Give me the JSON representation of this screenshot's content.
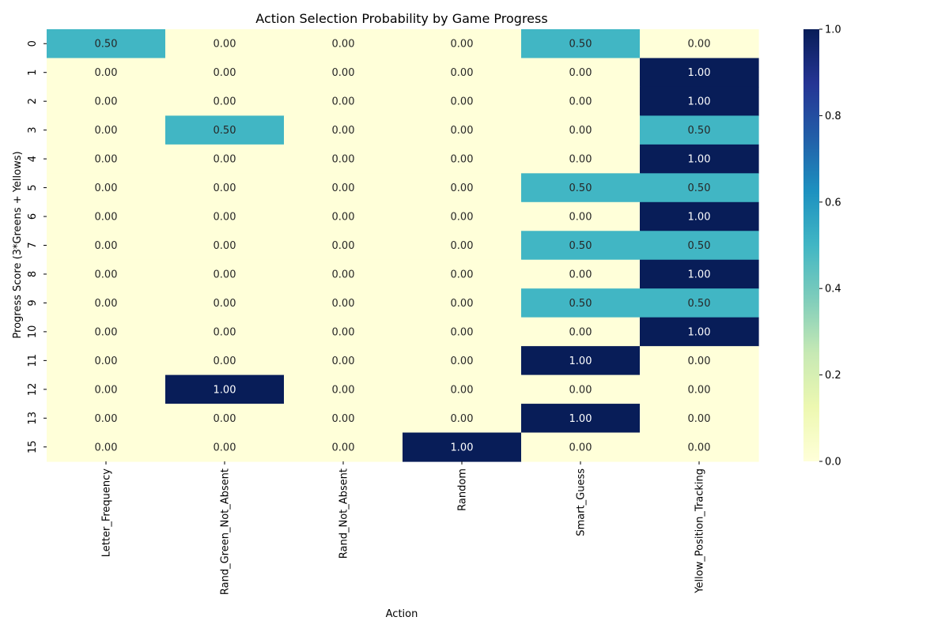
{
  "chart_data": {
    "type": "heatmap",
    "title": "Action Selection Probability by Game Progress",
    "xlabel": "Action",
    "ylabel": "Progress Score (3*Greens + Yellows)",
    "columns": [
      "Letter_Frequency",
      "Rand_Green_Not_Absent",
      "Rand_Not_Absent",
      "Random",
      "Smart_Guess",
      "Yellow_Position_Tracking"
    ],
    "rows": [
      "0",
      "1",
      "2",
      "3",
      "4",
      "5",
      "6",
      "7",
      "8",
      "9",
      "10",
      "11",
      "12",
      "13",
      "15"
    ],
    "values": [
      [
        0.5,
        0.0,
        0.0,
        0.0,
        0.5,
        0.0
      ],
      [
        0.0,
        0.0,
        0.0,
        0.0,
        0.0,
        1.0
      ],
      [
        0.0,
        0.0,
        0.0,
        0.0,
        0.0,
        1.0
      ],
      [
        0.0,
        0.5,
        0.0,
        0.0,
        0.0,
        0.5
      ],
      [
        0.0,
        0.0,
        0.0,
        0.0,
        0.0,
        1.0
      ],
      [
        0.0,
        0.0,
        0.0,
        0.0,
        0.5,
        0.5
      ],
      [
        0.0,
        0.0,
        0.0,
        0.0,
        0.0,
        1.0
      ],
      [
        0.0,
        0.0,
        0.0,
        0.0,
        0.5,
        0.5
      ],
      [
        0.0,
        0.0,
        0.0,
        0.0,
        0.0,
        1.0
      ],
      [
        0.0,
        0.0,
        0.0,
        0.0,
        0.5,
        0.5
      ],
      [
        0.0,
        0.0,
        0.0,
        0.0,
        0.0,
        1.0
      ],
      [
        0.0,
        0.0,
        0.0,
        0.0,
        1.0,
        0.0
      ],
      [
        0.0,
        1.0,
        0.0,
        0.0,
        0.0,
        0.0
      ],
      [
        0.0,
        0.0,
        0.0,
        0.0,
        1.0,
        0.0
      ],
      [
        0.0,
        0.0,
        0.0,
        1.0,
        0.0,
        0.0
      ]
    ],
    "value_format": "0.00",
    "colormap": "YlGnBu",
    "colorbar": {
      "range": [
        0.0,
        1.0
      ],
      "ticks": [
        0.0,
        0.2,
        0.4,
        0.6,
        0.8,
        1.0
      ],
      "tick_labels": [
        "0.0",
        "0.2",
        "0.4",
        "0.6",
        "0.8",
        "1.0"
      ]
    },
    "colors": {
      "low": "#ffffd9",
      "mid": "#41b6c4",
      "high": "#081d58",
      "label_dark": "#262626",
      "label_light": "#ffffff"
    }
  }
}
